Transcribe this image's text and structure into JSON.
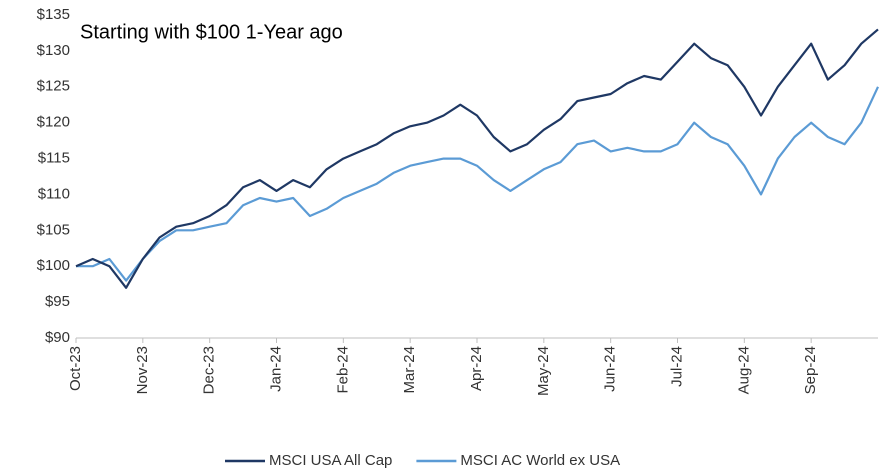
{
  "chart_data": {
    "type": "line",
    "title": "Starting with $100 1-Year ago",
    "categories": [
      "Oct-23",
      null,
      null,
      null,
      "Nov-23",
      null,
      null,
      null,
      "Dec-23",
      null,
      null,
      null,
      "Jan-24",
      null,
      null,
      null,
      "Feb-24",
      null,
      null,
      null,
      "Mar-24",
      null,
      null,
      null,
      "Apr-24",
      null,
      null,
      null,
      "May-24",
      null,
      null,
      null,
      "Jun-24",
      null,
      null,
      null,
      "Jul-24",
      null,
      null,
      null,
      "Aug-24",
      null,
      null,
      null,
      "Sep-24",
      null,
      null,
      null,
      null
    ],
    "series": [
      {
        "name": "MSCI USA All Cap",
        "color": "#1f3864",
        "values": [
          100,
          101,
          100,
          97,
          101,
          104,
          105.5,
          106,
          107,
          108.5,
          111,
          112,
          110.5,
          112,
          111,
          113.5,
          115,
          116,
          117,
          118.5,
          119.5,
          120,
          121,
          122.5,
          121,
          118,
          116,
          117,
          119,
          120.5,
          123,
          123.5,
          124,
          125.5,
          126.5,
          126,
          128.5,
          131,
          129,
          128,
          125,
          121,
          125,
          128,
          131,
          126,
          128,
          131,
          133
        ]
      },
      {
        "name": "MSCI AC World ex USA",
        "color": "#5b9bd5",
        "values": [
          100,
          100,
          101,
          98,
          101,
          103.5,
          105,
          105,
          105.5,
          106,
          108.5,
          109.5,
          109,
          109.5,
          107,
          108,
          109.5,
          110.5,
          111.5,
          113,
          114,
          114.5,
          115,
          115,
          114,
          112,
          110.5,
          112,
          113.5,
          114.5,
          117,
          117.5,
          116,
          116.5,
          116,
          116,
          117,
          120,
          118,
          117,
          114,
          110,
          115,
          118,
          120,
          118,
          117,
          120,
          125
        ]
      }
    ],
    "ylim": [
      90,
      135
    ],
    "yticks": [
      {
        "value": 90,
        "label": "$90"
      },
      {
        "value": 95,
        "label": "$95"
      },
      {
        "value": 100,
        "label": "$100"
      },
      {
        "value": 105,
        "label": "$105"
      },
      {
        "value": 110,
        "label": "$110"
      },
      {
        "value": 115,
        "label": "$115"
      },
      {
        "value": 120,
        "label": "$120"
      },
      {
        "value": 125,
        "label": "$125"
      },
      {
        "value": 130,
        "label": "$130"
      },
      {
        "value": 135,
        "label": "$135"
      }
    ],
    "grid": false,
    "legend": "bottom"
  }
}
